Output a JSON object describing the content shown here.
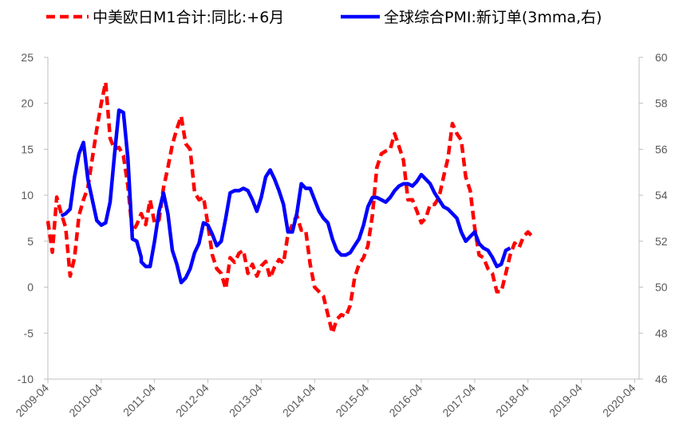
{
  "chart_data": {
    "type": "line",
    "title": "",
    "xlabel": "",
    "ylabel": "",
    "y2label": "",
    "legend": {
      "position": "top"
    },
    "grid": false,
    "x_tick_labels": [
      "2009-04",
      "2010-04",
      "2011-04",
      "2012-04",
      "2013-04",
      "2014-04",
      "2015-04",
      "2016-04",
      "2017-04",
      "2018-04",
      "2019-04",
      "2020-04"
    ],
    "x_range": [
      "2009-04",
      "2020-05"
    ],
    "left_axis": {
      "min": -10,
      "max": 25,
      "step": 5
    },
    "right_axis": {
      "min": 46,
      "max": 60,
      "step": 2
    },
    "series": [
      {
        "name": "中美欧日M1合计:同比:+6月",
        "axis": "left",
        "color": "#ff0000",
        "style": "dashed",
        "points": [
          [
            "2009-04",
            7.2
          ],
          [
            "2009-05",
            3.8
          ],
          [
            "2009-06",
            9.8
          ],
          [
            "2009-07",
            8.0
          ],
          [
            "2009-08",
            6.5
          ],
          [
            "2009-09",
            1.2
          ],
          [
            "2009-10",
            3.2
          ],
          [
            "2009-11",
            7.8
          ],
          [
            "2009-12",
            9.5
          ],
          [
            "2010-01",
            10.8
          ],
          [
            "2010-02",
            14.0
          ],
          [
            "2010-03",
            17.2
          ],
          [
            "2010-04",
            20.0
          ],
          [
            "2010-05",
            22.3
          ],
          [
            "2010-06",
            16.2
          ],
          [
            "2010-07",
            15.0
          ],
          [
            "2010-08",
            15.2
          ],
          [
            "2010-09",
            14.3
          ],
          [
            "2010-10",
            11.0
          ],
          [
            "2010-11",
            6.0
          ],
          [
            "2010-12",
            6.8
          ],
          [
            "2011-01",
            8.0
          ],
          [
            "2011-02",
            6.8
          ],
          [
            "2011-03",
            9.5
          ],
          [
            "2011-04",
            7.0
          ],
          [
            "2011-05",
            7.3
          ],
          [
            "2011-06",
            10.8
          ],
          [
            "2011-07",
            13.0
          ],
          [
            "2011-08",
            15.5
          ],
          [
            "2011-09",
            17.2
          ],
          [
            "2011-10",
            18.6
          ],
          [
            "2011-11",
            15.6
          ],
          [
            "2011-12",
            15.0
          ],
          [
            "2012-01",
            10.3
          ],
          [
            "2012-02",
            9.5
          ],
          [
            "2012-03",
            9.8
          ],
          [
            "2012-04",
            6.8
          ],
          [
            "2012-05",
            3.5
          ],
          [
            "2012-06",
            2.0
          ],
          [
            "2012-07",
            1.5
          ],
          [
            "2012-08",
            -0.2
          ],
          [
            "2012-09",
            3.2
          ],
          [
            "2012-10",
            2.7
          ],
          [
            "2012-11",
            3.7
          ],
          [
            "2012-12",
            4.0
          ],
          [
            "2013-01",
            1.5
          ],
          [
            "2013-02",
            2.5
          ],
          [
            "2013-03",
            1.2
          ],
          [
            "2013-04",
            2.3
          ],
          [
            "2013-05",
            2.8
          ],
          [
            "2013-06",
            1.0
          ],
          [
            "2013-07",
            2.2
          ],
          [
            "2013-08",
            3.0
          ],
          [
            "2013-09",
            2.6
          ],
          [
            "2013-10",
            5.8
          ],
          [
            "2013-11",
            6.8
          ],
          [
            "2013-12",
            7.8
          ],
          [
            "2014-01",
            6.2
          ],
          [
            "2014-02",
            6.2
          ],
          [
            "2014-03",
            2.5
          ],
          [
            "2014-04",
            0.0
          ],
          [
            "2014-05",
            -0.5
          ],
          [
            "2014-06",
            -1.0
          ],
          [
            "2014-07",
            -3.0
          ],
          [
            "2014-08",
            -5.0
          ],
          [
            "2014-09",
            -3.5
          ],
          [
            "2014-10",
            -3.0
          ],
          [
            "2014-11",
            -3.2
          ],
          [
            "2014-12",
            -2.0
          ],
          [
            "2015-01",
            1.0
          ],
          [
            "2015-02",
            2.5
          ],
          [
            "2015-03",
            3.2
          ],
          [
            "2015-04",
            4.5
          ],
          [
            "2015-05",
            7.8
          ],
          [
            "2015-06",
            13.0
          ],
          [
            "2015-07",
            14.5
          ],
          [
            "2015-08",
            14.8
          ],
          [
            "2015-09",
            15.0
          ],
          [
            "2015-10",
            16.7
          ],
          [
            "2015-11",
            15.3
          ],
          [
            "2015-12",
            13.8
          ],
          [
            "2016-01",
            9.5
          ],
          [
            "2016-02",
            9.5
          ],
          [
            "2016-03",
            8.3
          ],
          [
            "2016-04",
            7.0
          ],
          [
            "2016-05",
            7.5
          ],
          [
            "2016-06",
            9.0
          ],
          [
            "2016-07",
            9.0
          ],
          [
            "2016-08",
            9.8
          ],
          [
            "2016-09",
            12.0
          ],
          [
            "2016-10",
            14.0
          ],
          [
            "2016-11",
            17.8
          ],
          [
            "2016-12",
            16.7
          ],
          [
            "2017-01",
            16.0
          ],
          [
            "2017-02",
            12.0
          ],
          [
            "2017-03",
            10.5
          ],
          [
            "2017-04",
            6.5
          ],
          [
            "2017-05",
            3.5
          ],
          [
            "2017-06",
            3.2
          ],
          [
            "2017-07",
            2.0
          ],
          [
            "2017-08",
            1.5
          ],
          [
            "2017-09",
            -0.5
          ],
          [
            "2017-10",
            -0.5
          ],
          [
            "2017-11",
            1.5
          ],
          [
            "2017-12",
            3.5
          ],
          [
            "2018-01",
            4.8
          ],
          [
            "2018-02",
            4.3
          ],
          [
            "2018-03",
            5.5
          ],
          [
            "2018-04",
            6.0
          ],
          [
            "2018-05",
            5.5
          ]
        ]
      },
      {
        "name": "全球综合PMI:新订单(3mma,右)",
        "axis": "right",
        "color": "#0000ff",
        "style": "solid",
        "points": [
          [
            "2009-07",
            53.1
          ],
          [
            "2009-08",
            53.2
          ],
          [
            "2009-09",
            53.4
          ],
          [
            "2009-10",
            54.8
          ],
          [
            "2009-11",
            55.8
          ],
          [
            "2009-12",
            56.3
          ],
          [
            "2010-01",
            54.7
          ],
          [
            "2010-02",
            53.8
          ],
          [
            "2010-03",
            52.9
          ],
          [
            "2010-04",
            52.7
          ],
          [
            "2010-05",
            52.8
          ],
          [
            "2010-06",
            53.7
          ],
          [
            "2010-07",
            55.8
          ],
          [
            "2010-08",
            57.7
          ],
          [
            "2010-09",
            57.6
          ],
          [
            "2010-10",
            55.6
          ],
          [
            "2010-11",
            52.1
          ],
          [
            "2010-12",
            52.0
          ],
          [
            "2010-13",
            51.3
          ],
          [
            "2011-01",
            51.1
          ],
          [
            "2011-02",
            50.9
          ],
          [
            "2011-03",
            50.9
          ],
          [
            "2011-04",
            52.0
          ],
          [
            "2011-05",
            53.3
          ],
          [
            "2011-06",
            54.1
          ],
          [
            "2011-07",
            53.2
          ],
          [
            "2011-08",
            51.6
          ],
          [
            "2011-09",
            51.0
          ],
          [
            "2011-10",
            50.2
          ],
          [
            "2011-11",
            50.4
          ],
          [
            "2011-12",
            50.8
          ],
          [
            "2012-01",
            51.5
          ],
          [
            "2012-02",
            51.9
          ],
          [
            "2012-03",
            52.8
          ],
          [
            "2012-04",
            52.7
          ],
          [
            "2012-05",
            52.3
          ],
          [
            "2012-06",
            51.8
          ],
          [
            "2012-07",
            52.0
          ],
          [
            "2012-08",
            53.0
          ],
          [
            "2012-09",
            54.1
          ],
          [
            "2012-10",
            54.2
          ],
          [
            "2012-11",
            54.2
          ],
          [
            "2012-12",
            54.3
          ],
          [
            "2013-01",
            54.2
          ],
          [
            "2013-02",
            53.8
          ],
          [
            "2013-03",
            53.3
          ],
          [
            "2013-04",
            53.9
          ],
          [
            "2013-05",
            54.8
          ],
          [
            "2013-06",
            55.1
          ],
          [
            "2013-07",
            54.7
          ],
          [
            "2013-08",
            54.2
          ],
          [
            "2013-09",
            53.6
          ],
          [
            "2013-10",
            52.4
          ],
          [
            "2013-11",
            52.4
          ],
          [
            "2013-12",
            53.2
          ],
          [
            "2014-01",
            54.5
          ],
          [
            "2014-02",
            54.3
          ],
          [
            "2014-03",
            54.3
          ],
          [
            "2014-04",
            53.8
          ],
          [
            "2014-05",
            53.3
          ],
          [
            "2014-06",
            53.0
          ],
          [
            "2014-07",
            52.8
          ],
          [
            "2014-08",
            52.1
          ],
          [
            "2014-09",
            51.6
          ],
          [
            "2014-10",
            51.4
          ],
          [
            "2014-11",
            51.4
          ],
          [
            "2014-12",
            51.5
          ],
          [
            "2015-01",
            51.8
          ],
          [
            "2015-02",
            52.1
          ],
          [
            "2015-03",
            52.7
          ],
          [
            "2015-04",
            53.5
          ],
          [
            "2015-05",
            53.9
          ],
          [
            "2015-06",
            53.9
          ],
          [
            "2015-07",
            53.8
          ],
          [
            "2015-08",
            53.7
          ],
          [
            "2015-09",
            53.9
          ],
          [
            "2015-10",
            54.2
          ],
          [
            "2015-11",
            54.4
          ],
          [
            "2015-12",
            54.5
          ],
          [
            "2016-01",
            54.5
          ],
          [
            "2016-02",
            54.4
          ],
          [
            "2016-03",
            54.6
          ],
          [
            "2016-04",
            54.9
          ],
          [
            "2016-05",
            54.7
          ],
          [
            "2016-06",
            54.5
          ],
          [
            "2016-07",
            54.1
          ],
          [
            "2016-08",
            53.8
          ],
          [
            "2016-09",
            53.5
          ],
          [
            "2016-10",
            53.4
          ],
          [
            "2016-11",
            53.2
          ],
          [
            "2016-12",
            53.0
          ],
          [
            "2017-01",
            52.4
          ],
          [
            "2017-02",
            52.0
          ],
          [
            "2017-03",
            52.2
          ],
          [
            "2017-04",
            52.4
          ],
          [
            "2017-05",
            51.9
          ],
          [
            "2017-06",
            51.7
          ],
          [
            "2017-07",
            51.6
          ],
          [
            "2017-08",
            51.3
          ],
          [
            "2017-09",
            50.9
          ],
          [
            "2017-10",
            51.0
          ],
          [
            "2017-11",
            51.6
          ],
          [
            "2017-12",
            51.7
          ]
        ]
      }
    ]
  }
}
